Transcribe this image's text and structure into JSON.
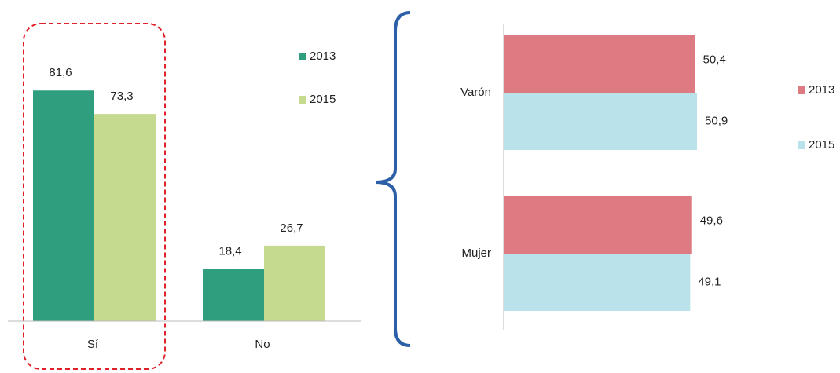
{
  "chart_data": [
    {
      "type": "bar",
      "categories": [
        "Sí",
        "No"
      ],
      "series": [
        {
          "name": "2013",
          "color": "#2f9e7e",
          "values": [
            81.6,
            18.4
          ],
          "value_labels": [
            "81,6",
            "18,4"
          ]
        },
        {
          "name": "2015",
          "color": "#c5d98f",
          "values": [
            73.3,
            26.7
          ],
          "value_labels": [
            "73,3",
            "26,7"
          ]
        }
      ],
      "ylim": [
        0,
        100
      ]
    },
    {
      "type": "barh",
      "categories": [
        "Varón",
        "Mujer"
      ],
      "series": [
        {
          "name": "2013",
          "color": "#de7a82",
          "values": [
            50.4,
            49.6
          ],
          "value_labels": [
            "50,4",
            "49,6"
          ]
        },
        {
          "name": "2015",
          "color": "#b9e2ea",
          "values": [
            50.9,
            49.1
          ],
          "value_labels": [
            "50,9",
            "49,1"
          ]
        }
      ],
      "xlim": [
        0,
        60
      ]
    }
  ]
}
